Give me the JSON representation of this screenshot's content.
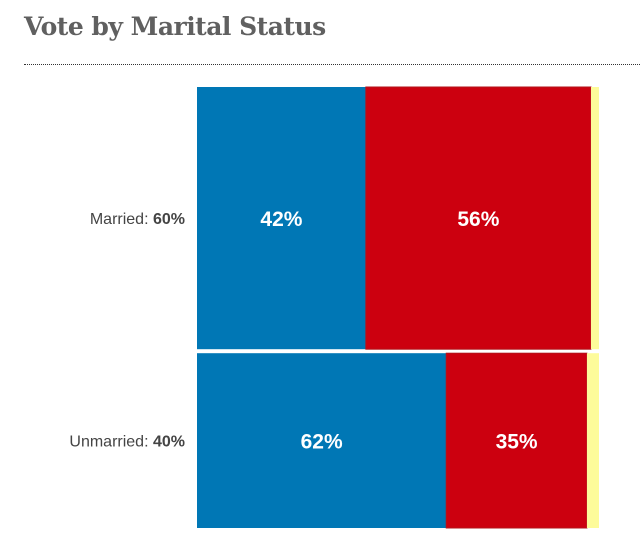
{
  "title": "Vote by Marital Status",
  "chart_data": {
    "type": "bar",
    "stacked": true,
    "orientation": "horizontal",
    "variable_row_height": true,
    "title": "Vote by Marital Status",
    "rows": [
      {
        "label": "Married:",
        "share_label": "60%",
        "share": 60,
        "segments": [
          {
            "value": 42,
            "label": "42%",
            "color": "#0077b5"
          },
          {
            "value": 56,
            "label": "56%",
            "color": "#cc000f"
          },
          {
            "value": 2,
            "label": "",
            "color": "#fdfb9a"
          }
        ]
      },
      {
        "label": "Unmarried:",
        "share_label": "40%",
        "share": 40,
        "segments": [
          {
            "value": 62,
            "label": "62%",
            "color": "#0077b5"
          },
          {
            "value": 35,
            "label": "35%",
            "color": "#cc000f"
          },
          {
            "value": 3,
            "label": "",
            "color": "#fdfb9a"
          }
        ]
      }
    ],
    "grid": false
  }
}
